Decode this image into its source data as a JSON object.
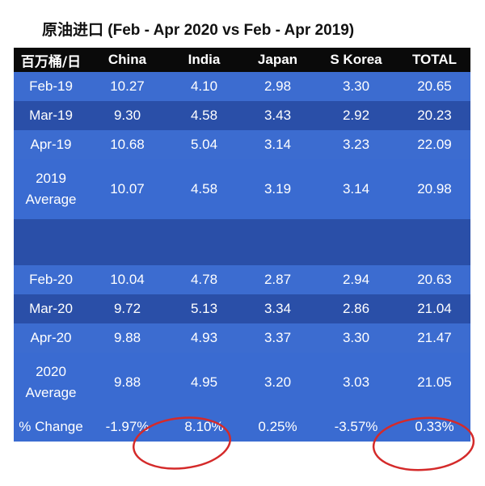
{
  "title": {
    "chinese": "原油进口",
    "rest": "(Feb - Apr 2020 vs Feb - Apr 2019)"
  },
  "header": [
    "百万桶/日",
    "China",
    "India",
    "Japan",
    "S Korea",
    "TOTAL"
  ],
  "rows": [
    {
      "label": "Feb-19",
      "values": [
        "10.27",
        "4.10",
        "2.98",
        "3.30",
        "20.65"
      ]
    },
    {
      "label": "Mar-19",
      "values": [
        "9.30",
        "4.58",
        "3.43",
        "2.92",
        "20.23"
      ]
    },
    {
      "label": "Apr-19",
      "values": [
        "10.68",
        "5.04",
        "3.14",
        "3.23",
        "22.09"
      ]
    },
    {
      "label_line1": "2019",
      "label_line2": "Average",
      "values": [
        "10.07",
        "4.58",
        "3.19",
        "3.14",
        "20.98"
      ]
    },
    {
      "label": "Feb-20",
      "values": [
        "10.04",
        "4.78",
        "2.87",
        "2.94",
        "20.63"
      ]
    },
    {
      "label": "Mar-20",
      "values": [
        "9.72",
        "5.13",
        "3.34",
        "2.86",
        "21.04"
      ]
    },
    {
      "label": "Apr-20",
      "values": [
        "9.88",
        "4.93",
        "3.37",
        "3.30",
        "21.47"
      ]
    },
    {
      "label_line1": "2020",
      "label_line2": "Average",
      "values": [
        "9.88",
        "4.95",
        "3.20",
        "3.03",
        "21.05"
      ]
    },
    {
      "label": "% Change",
      "values": [
        "-1.97%",
        "8.10%",
        "0.25%",
        "-3.57%",
        "0.33%"
      ]
    }
  ],
  "colors": {
    "header_bg": "#0a0a0a",
    "row_light": "#3c6cd0",
    "row_dark": "#2a4fa8",
    "highlight_circle": "#d42a2a"
  }
}
